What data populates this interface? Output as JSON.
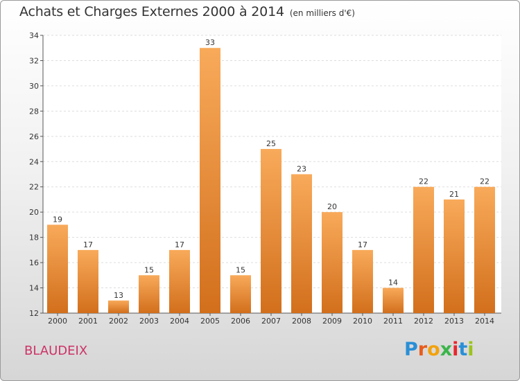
{
  "title": "Achats et Charges Externes 2000 à 2014",
  "unit": "(en milliers d'€)",
  "commune": "BLAUDEIX",
  "logo": {
    "text": "Proxiti",
    "colors": [
      "#2a8fd6",
      "#e85c1c",
      "#f2a20d",
      "#3bb54a",
      "#e8262c",
      "#2a8fd6",
      "#9bc31c"
    ]
  },
  "colors": {
    "bar_light": "#f8aa5a",
    "bar_dark": "#d26f1c",
    "commune": "#cc3366"
  },
  "chart_data": {
    "type": "bar",
    "categories": [
      "2000",
      "2001",
      "2002",
      "2003",
      "2004",
      "2005",
      "2006",
      "2007",
      "2008",
      "2009",
      "2010",
      "2011",
      "2012",
      "2013",
      "2014"
    ],
    "values": [
      19,
      17,
      13,
      15,
      17,
      33,
      15,
      25,
      23,
      20,
      17,
      14,
      22,
      21,
      22
    ],
    "ylim": [
      12,
      34
    ],
    "yticks": [
      12,
      14,
      16,
      18,
      20,
      22,
      24,
      26,
      28,
      30,
      32,
      34
    ],
    "grid": true
  }
}
